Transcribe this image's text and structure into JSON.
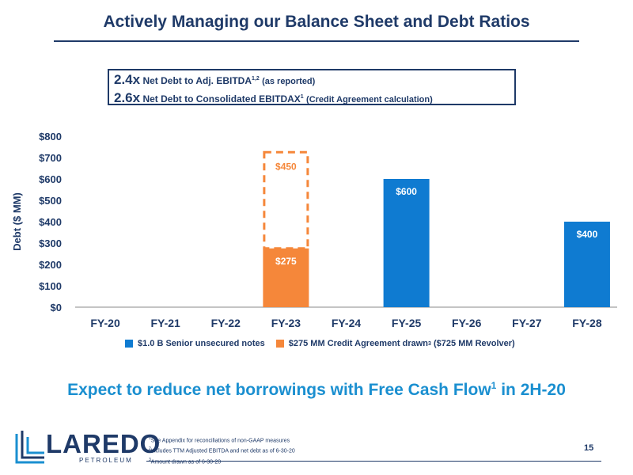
{
  "title": "Actively Managing our Balance Sheet and Debt Ratios",
  "ratios": [
    {
      "value": "2.4x",
      "label": "Net Debt to Adj. EBITDA",
      "sup": "1,2",
      "note": "(as reported)"
    },
    {
      "value": "2.6x",
      "label": "Net Debt to Consolidated EBITDAX",
      "sup": "1",
      "note": "(Credit Agreement calculation)"
    }
  ],
  "chart_data": {
    "type": "bar",
    "categories": [
      "FY-20",
      "FY-21",
      "FY-22",
      "FY-23",
      "FY-24",
      "FY-25",
      "FY-26",
      "FY-27",
      "FY-28"
    ],
    "series": [
      {
        "name": "$1.0 B Senior unsecured notes",
        "color": "#0f7bd1",
        "values": [
          0,
          0,
          0,
          0,
          0,
          600,
          0,
          0,
          400
        ],
        "labels": [
          "",
          "",
          "",
          "",
          "",
          "$600",
          "",
          "",
          "$400"
        ]
      },
      {
        "name": "$275 MM Credit Agreement drawn",
        "color": "#f5873a",
        "values": [
          0,
          0,
          0,
          275,
          0,
          0,
          0,
          0,
          0
        ],
        "labels": [
          "",
          "",
          "",
          "$275",
          "",
          "",
          "",
          "",
          ""
        ]
      }
    ],
    "undrawn": {
      "category": "FY-23",
      "value": 450,
      "label": "$450",
      "style": "dashed",
      "color": "#f5873a"
    },
    "ylabel": "Debt ($ MM)",
    "ylim": [
      0,
      800
    ],
    "yticks": [
      "$0",
      "$100",
      "$200",
      "$300",
      "$400",
      "$500",
      "$600",
      "$700",
      "$800"
    ],
    "ytick_values": [
      0,
      100,
      200,
      300,
      400,
      500,
      600,
      700,
      800
    ],
    "grid": false
  },
  "legend": {
    "items": [
      {
        "label": "$1.0 B Senior unsecured notes",
        "color": "#0f7bd1"
      },
      {
        "label": "$275 MM Credit Agreement drawn",
        "sup": "3",
        "suffix": "($725 MM Revolver)",
        "color": "#f5873a"
      }
    ]
  },
  "tagline": {
    "text": "Expect to reduce net borrowings with Free Cash Flow",
    "sup": "1",
    "suffix": "in 2H-20"
  },
  "logo": {
    "word": "LAREDO",
    "sub": "PETROLEUM"
  },
  "footnotes": [
    {
      "sup": "1",
      "text": "See Appendix for reconciliations of non-GAAP measures"
    },
    {
      "sup": "2",
      "text": "Includes TTM Adjusted EBITDA and net debt as of 6-30-20"
    },
    {
      "sup": "3",
      "text": "Amount drawn as of 6-30-20"
    }
  ],
  "page_number": "15"
}
